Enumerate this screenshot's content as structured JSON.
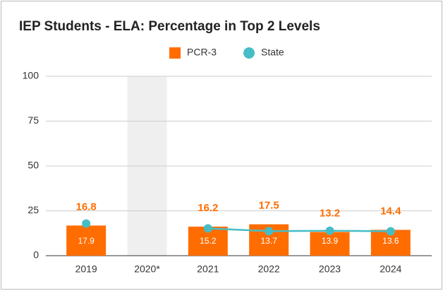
{
  "chart_data": {
    "type": "bar",
    "title": "IEP Students - ELA: Percentage in Top 2 Levels",
    "categories": [
      "2019",
      "2020*",
      "2021",
      "2022",
      "2023",
      "2024"
    ],
    "series": [
      {
        "name": "PCR-3",
        "type": "bar",
        "color": "#ff6d01",
        "values": [
          16.8,
          null,
          16.2,
          17.5,
          13.2,
          14.4
        ]
      },
      {
        "name": "State",
        "type": "line",
        "color": "#46bdc6",
        "values": [
          17.9,
          null,
          15.2,
          13.7,
          13.9,
          13.6
        ]
      }
    ],
    "ylim": [
      0,
      100
    ],
    "yticks": [
      0,
      25,
      50,
      75,
      100
    ],
    "grid": true,
    "legend": "top"
  }
}
